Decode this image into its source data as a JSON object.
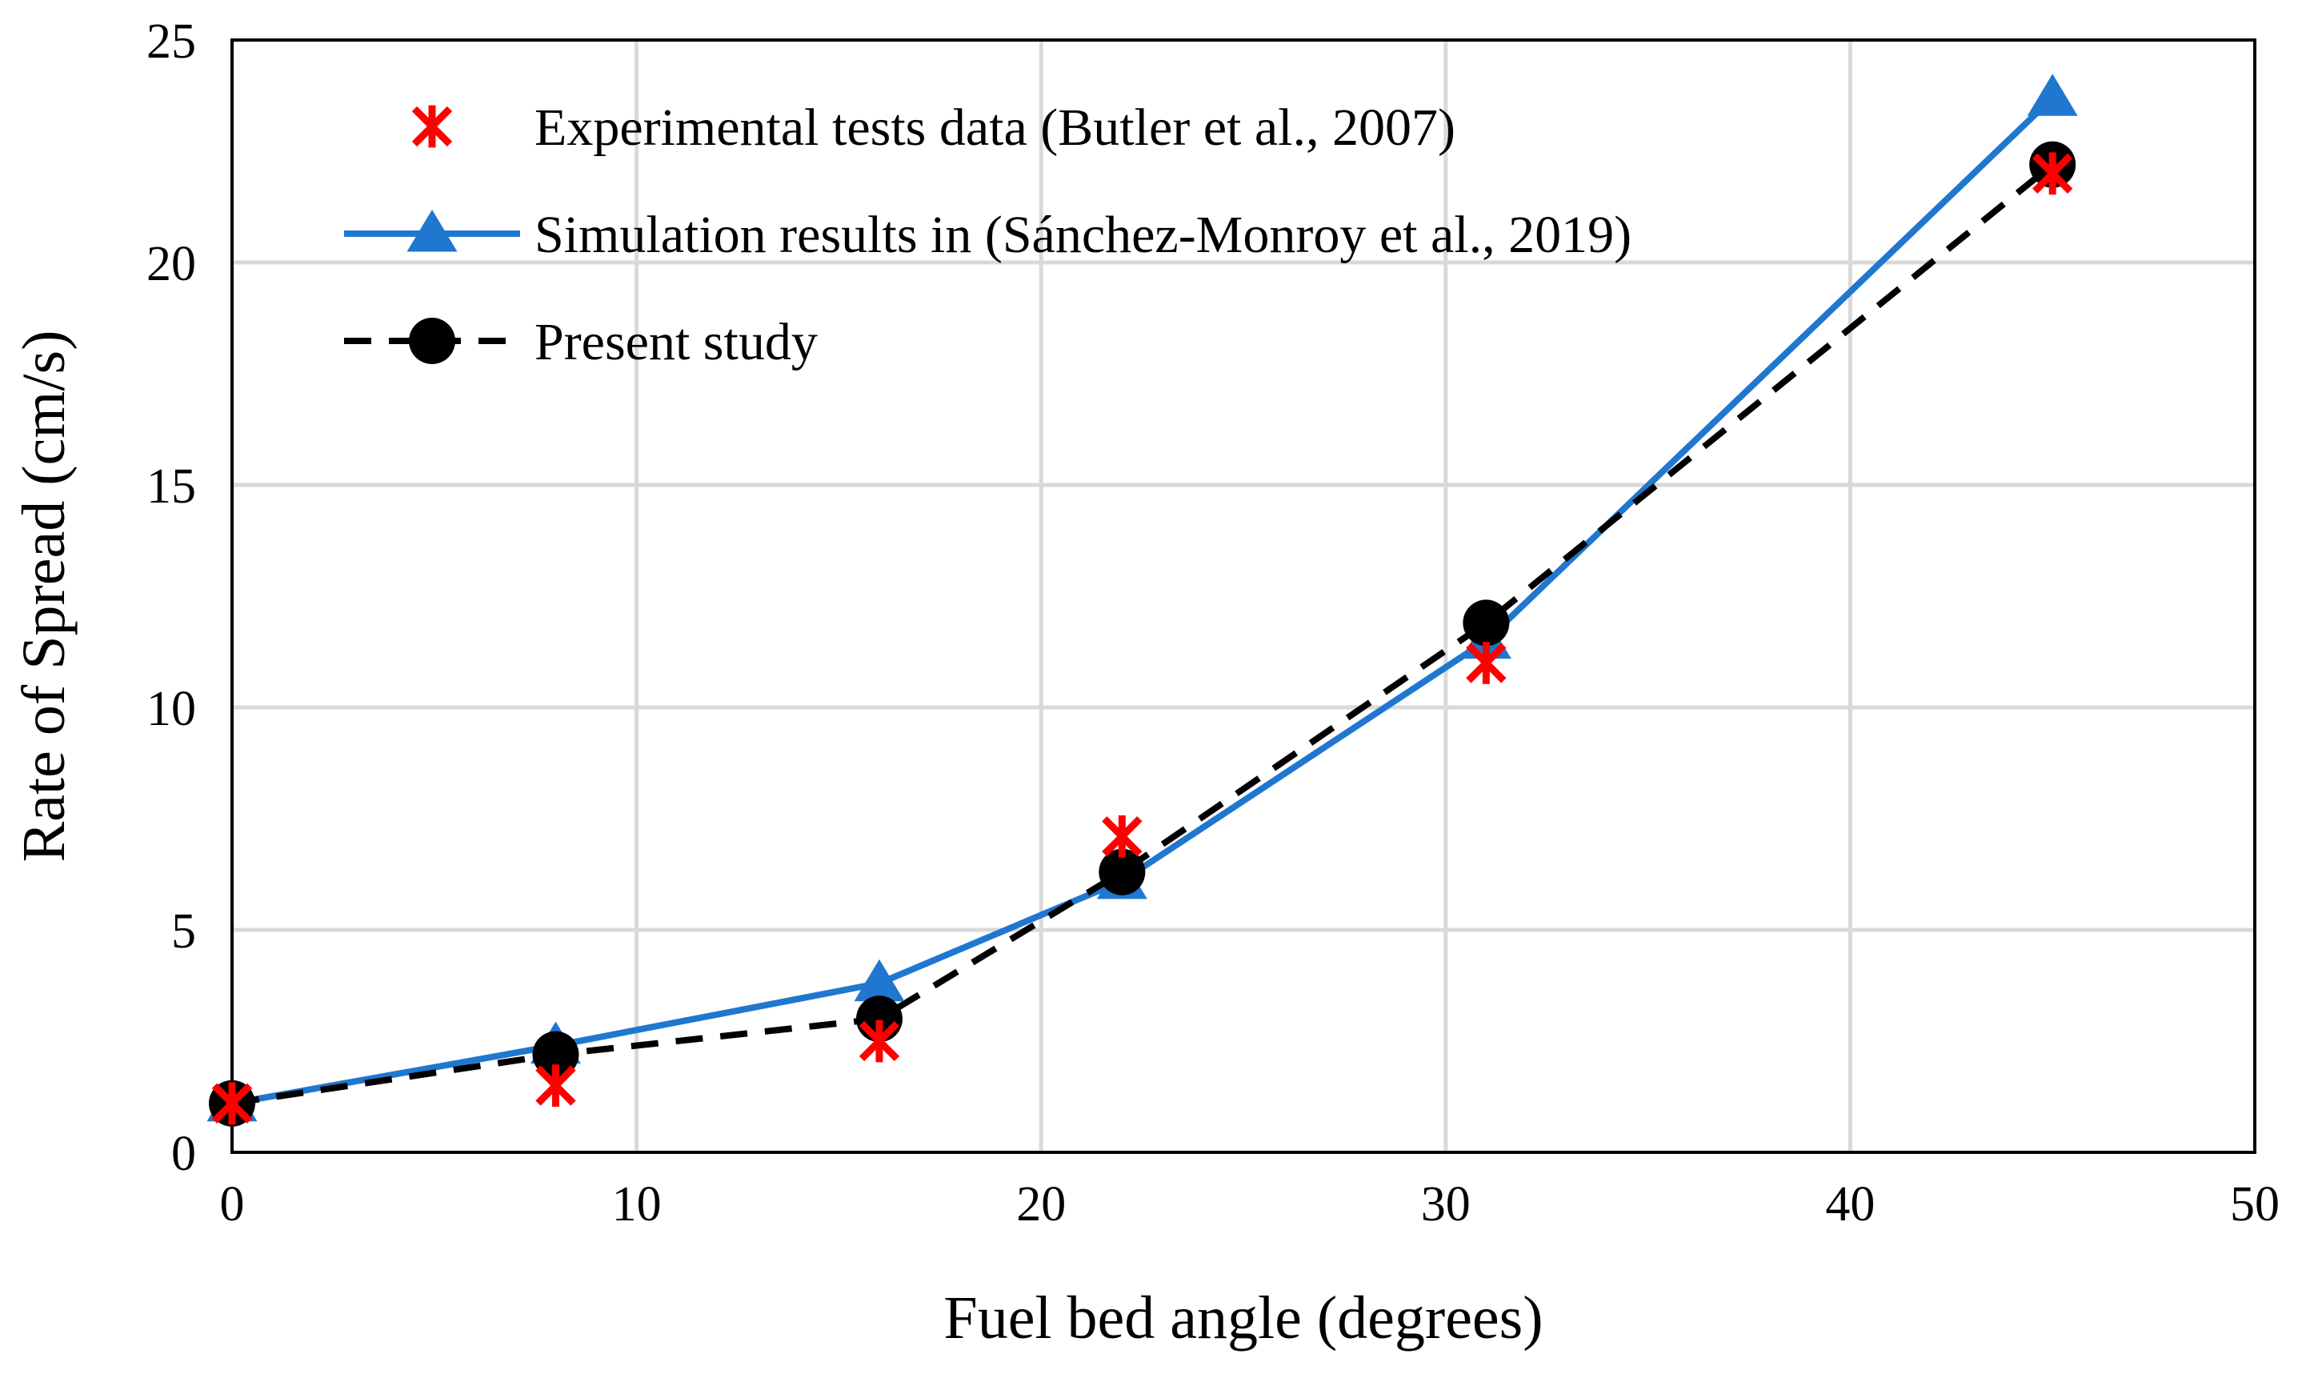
{
  "chart_data": {
    "type": "line",
    "title": "",
    "xlabel": "Fuel bed angle (degrees)",
    "ylabel": "Rate of Spread (cm/s)",
    "xlim": [
      0,
      50
    ],
    "ylim": [
      0,
      25
    ],
    "x_ticks": [
      0,
      10,
      20,
      30,
      40,
      50
    ],
    "y_ticks": [
      0,
      5,
      10,
      15,
      20,
      25
    ],
    "grid": true,
    "legend_position": "top-left",
    "series": [
      {
        "name": "Experimental tests data (Butler et al., 2007)",
        "style": "markers-only",
        "marker": "asterisk",
        "color": "#ff0000",
        "x": [
          0,
          8,
          16,
          22,
          31,
          45
        ],
        "values": [
          1.1,
          1.5,
          2.5,
          7.1,
          11.0,
          22.0
        ]
      },
      {
        "name": "Simulation results in (Sánchez-Monroy et al., 2019)",
        "style": "solid-line",
        "marker": "triangle",
        "color": "#1f77d0",
        "x": [
          0,
          8,
          16,
          22,
          31,
          45
        ],
        "values": [
          1.1,
          2.4,
          3.8,
          6.1,
          11.5,
          23.7
        ]
      },
      {
        "name": "Present study",
        "style": "dashed-line",
        "marker": "circle",
        "color": "#000000",
        "x": [
          0,
          8,
          16,
          22,
          31,
          45
        ],
        "values": [
          1.1,
          2.2,
          3.0,
          6.3,
          11.9,
          22.2
        ]
      }
    ]
  }
}
